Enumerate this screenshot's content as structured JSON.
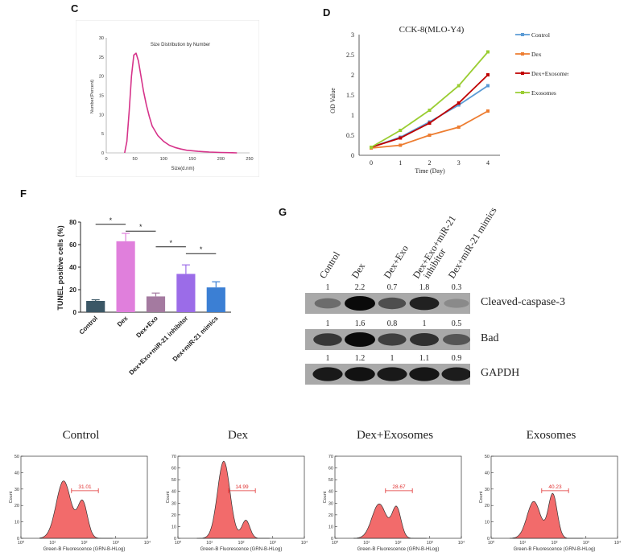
{
  "panels": {
    "c": {
      "letter": "C"
    },
    "d": {
      "letter": "D"
    },
    "f": {
      "letter": "F"
    },
    "g": {
      "letter": "G"
    }
  },
  "chart_data": [
    {
      "id": "size-distribution",
      "type": "line",
      "title": "Size Distribution by Number",
      "xlabel": "Size(d.nm)",
      "ylabel": "Number(Percent)",
      "xlim": [
        0,
        250
      ],
      "ylim": [
        0,
        30
      ],
      "xticks": [
        "0",
        "50",
        "100",
        "150",
        "200",
        "250"
      ],
      "yticks": [
        "0",
        "5",
        "10",
        "15",
        "20",
        "25",
        "30"
      ],
      "color": "#d6338a",
      "series": [
        {
          "x": [
            32,
            36,
            40,
            44,
            48,
            52,
            56,
            60,
            65,
            70,
            75,
            80,
            90,
            100,
            110,
            120,
            130,
            140,
            160,
            180,
            200,
            220,
            228
          ],
          "y": [
            0,
            3,
            11,
            20,
            25.5,
            26,
            24,
            20.5,
            16,
            12.5,
            9.5,
            7,
            4.5,
            3,
            2,
            1.4,
            1,
            0.7,
            0.4,
            0.2,
            0.1,
            0.05,
            0
          ]
        }
      ]
    },
    {
      "id": "cck8",
      "type": "line",
      "title": "CCK-8(MLO-Y4)",
      "xlabel": "Time (Day)",
      "ylabel": "OD Value",
      "xlim": [
        0,
        4
      ],
      "ylim": [
        0,
        3
      ],
      "xticks": [
        "0",
        "1",
        "2",
        "3",
        "4"
      ],
      "yticks": [
        "0",
        "0.5",
        "1",
        "1.5",
        "2",
        "2.5",
        "3"
      ],
      "legend": "right",
      "x": [
        0,
        1,
        2,
        3,
        4
      ],
      "series": [
        {
          "name": "Control",
          "color": "#5b9bd5",
          "values": [
            0.2,
            0.45,
            0.83,
            1.25,
            1.73
          ]
        },
        {
          "name": "Dex",
          "color": "#ed7d31",
          "values": [
            0.18,
            0.25,
            0.5,
            0.7,
            1.1
          ]
        },
        {
          "name": "Dex+Exosomes",
          "color": "#c00000",
          "values": [
            0.2,
            0.43,
            0.8,
            1.3,
            2.0
          ]
        },
        {
          "name": "Exosomes",
          "color": "#9acd32",
          "values": [
            0.2,
            0.62,
            1.12,
            1.73,
            2.57
          ]
        }
      ]
    },
    {
      "id": "tunel",
      "type": "bar",
      "ylabel": "TUNEL positive cells (%)",
      "ylim": [
        0,
        80
      ],
      "yticks": [
        "0",
        "20",
        "40",
        "60",
        "80"
      ],
      "categories": [
        "Control",
        "Dex",
        "Dex+Exo",
        "Dex+Exo+miR-21 inhibitor",
        "Dex+miR-21 mimics"
      ],
      "values": [
        10,
        63,
        14,
        34,
        22
      ],
      "errors": [
        1,
        7,
        3,
        8,
        5
      ],
      "colors": [
        "#3b5766",
        "#e07fdc",
        "#a47aa0",
        "#9b6ce8",
        "#3b7fd4"
      ],
      "significance": [
        {
          "pair": [
            0,
            1
          ],
          "label": "*"
        },
        {
          "pair": [
            1,
            2
          ],
          "label": "*"
        },
        {
          "pair": [
            2,
            3
          ],
          "label": "*"
        },
        {
          "pair": [
            3,
            4
          ],
          "label": "*"
        }
      ]
    },
    {
      "id": "flow",
      "type": "area",
      "xlabel": "Green-B Fluorescence (GRN-B-HLog)",
      "ylabel": "Count",
      "xticks": [
        "10⁰",
        "10¹",
        "10²",
        "10³",
        "10⁴"
      ],
      "fill": "#f26b6b",
      "plots": [
        {
          "title": "Control",
          "gate": "31.01",
          "ylim": [
            0,
            50
          ],
          "yticks": [
            "0",
            "10",
            "20",
            "30",
            "40",
            "50"
          ],
          "peaks": [
            {
              "x": 1.35,
              "h": 0.7,
              "w": 0.33
            },
            {
              "x": 1.95,
              "h": 0.44,
              "w": 0.22
            }
          ]
        },
        {
          "title": "Dex",
          "gate": "14.99",
          "ylim": [
            0,
            70
          ],
          "yticks": [
            "0",
            "10",
            "20",
            "30",
            "40",
            "50",
            "60",
            "70"
          ],
          "peaks": [
            {
              "x": 1.45,
              "h": 0.94,
              "w": 0.28
            },
            {
              "x": 2.15,
              "h": 0.22,
              "w": 0.18
            }
          ]
        },
        {
          "title": "Dex+Exosomes",
          "gate": "28.67",
          "ylim": [
            0,
            70
          ],
          "yticks": [
            "0",
            "10",
            "20",
            "30",
            "40",
            "50",
            "60",
            "70"
          ],
          "peaks": [
            {
              "x": 1.4,
              "h": 0.42,
              "w": 0.32
            },
            {
              "x": 1.95,
              "h": 0.37,
              "w": 0.2
            }
          ]
        },
        {
          "title": "Exosomes",
          "gate": "40.23",
          "ylim": [
            0,
            50
          ],
          "yticks": [
            "0",
            "10",
            "20",
            "30",
            "40",
            "50"
          ],
          "peaks": [
            {
              "x": 1.35,
              "h": 0.45,
              "w": 0.3
            },
            {
              "x": 1.95,
              "h": 0.54,
              "w": 0.2
            }
          ]
        }
      ]
    }
  ],
  "western_blot": {
    "lanes": [
      "Control",
      "Dex",
      "Dex+Exo",
      "Dex+Exo+miR-21 inhibitor",
      "Dex+miR-21 mimics"
    ],
    "rows": [
      {
        "label": "Cleaved-caspase-3",
        "values": [
          "1",
          "2.2",
          "0.7",
          "1.8",
          "0.3"
        ],
        "intensity": [
          0.35,
          1.0,
          0.55,
          0.85,
          0.15
        ]
      },
      {
        "label": "Bad",
        "values": [
          "1",
          "1.6",
          "0.8",
          "1",
          "0.5"
        ],
        "intensity": [
          0.7,
          1.0,
          0.65,
          0.75,
          0.5
        ]
      },
      {
        "label": "GAPDH",
        "values": [
          "1",
          "1.2",
          "1",
          "1.1",
          "0.9"
        ],
        "intensity": [
          0.9,
          0.95,
          0.9,
          0.92,
          0.88
        ]
      }
    ]
  }
}
